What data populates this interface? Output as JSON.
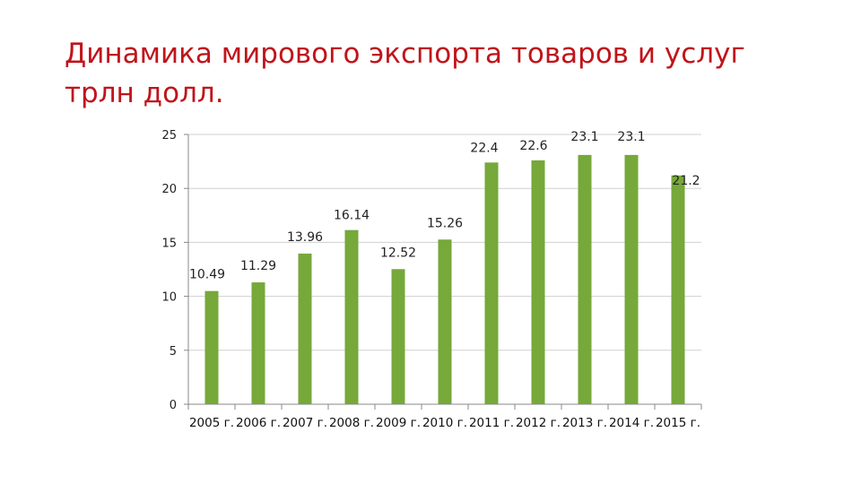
{
  "slide": {
    "title_line1": "Динамика мирового экспорта товаров и услуг",
    "title_line2": "трлн долл."
  },
  "colors": {
    "bar": "#76a83a",
    "grid": "#d0d0d0",
    "title": "#c0141b"
  },
  "chart_data": {
    "type": "bar",
    "categories": [
      "2005 г.",
      "2006 г.",
      "2007 г.",
      "2008 г.",
      "2009 г.",
      "2010 г.",
      "2011 г.",
      "2012 г.",
      "2013 г.",
      "2014 г.",
      "2015 г."
    ],
    "series": [
      {
        "values": [
          10.49,
          11.29,
          13.96,
          16.14,
          12.52,
          15.26,
          22.4,
          22.6,
          23.1,
          23.1,
          21.2
        ]
      }
    ],
    "data_labels": [
      "10.49",
      "11.29",
      "13.96",
      "16.14",
      "12.52",
      "15.26",
      "22.4",
      "22.6",
      "23.1",
      "23.1",
      "21.2"
    ],
    "yticks": [
      0,
      5,
      10,
      15,
      20,
      25
    ],
    "ylim": [
      0,
      25
    ],
    "grid": true,
    "legend": "none"
  }
}
